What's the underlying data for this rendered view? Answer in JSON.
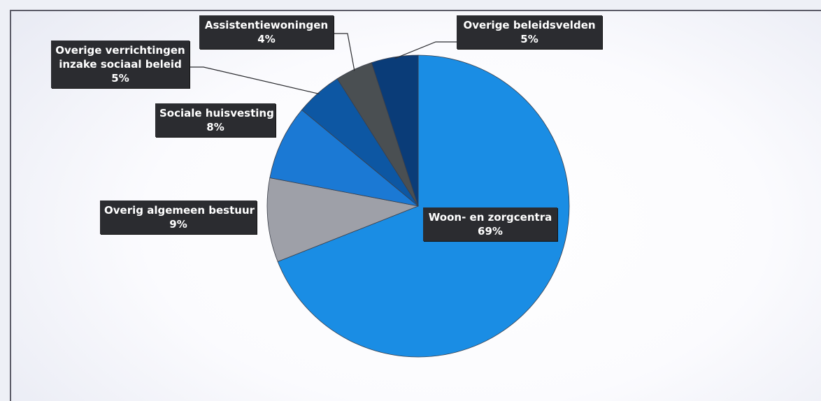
{
  "chart_data": {
    "type": "pie",
    "slices": [
      {
        "label": "Woon- en zorgcentra",
        "value": 69,
        "value_label": "69%",
        "color": "#1a8de4"
      },
      {
        "label": "Overig algemeen bestuur",
        "value": 9,
        "value_label": "9%",
        "color": "#9ea0a8"
      },
      {
        "label": "Sociale huisvesting",
        "value": 8,
        "value_label": "8%",
        "color": "#1b79d4"
      },
      {
        "label": [
          "Overige verrichtingen",
          "inzake sociaal beleid"
        ],
        "value": 5,
        "value_label": "5%",
        "color": "#0d57a3"
      },
      {
        "label": "Assistentiewoningen",
        "value": 4,
        "value_label": "4%",
        "color": "#4a4f52"
      },
      {
        "label": "Overige beleidsvelden",
        "value": 5,
        "value_label": "5%",
        "color": "#0a3c78"
      }
    ],
    "start_angle": "12 o'clock",
    "direction": "clockwise"
  }
}
